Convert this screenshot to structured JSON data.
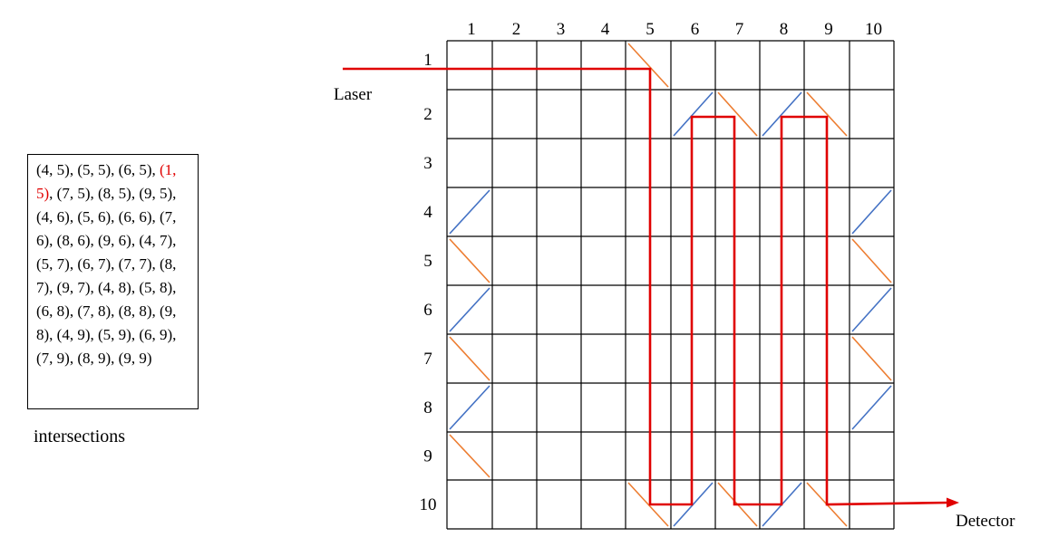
{
  "labels": {
    "laser": "Laser",
    "detector": "Detector",
    "intersections": "intersections"
  },
  "grid": {
    "rows": 10,
    "cols": 10,
    "column_labels": [
      "1",
      "2",
      "3",
      "4",
      "5",
      "6",
      "7",
      "8",
      "9",
      "10"
    ],
    "row_labels": [
      "1",
      "2",
      "3",
      "4",
      "5",
      "6",
      "7",
      "8",
      "9",
      "10"
    ]
  },
  "intersections": [
    {
      "text": "(4, 5)",
      "highlight": false
    },
    {
      "text": "(5, 5)",
      "highlight": false
    },
    {
      "text": "(6, 5)",
      "highlight": false
    },
    {
      "text": "(1, 5)",
      "highlight": true
    },
    {
      "text": "(7, 5)",
      "highlight": false
    },
    {
      "text": "(8, 5)",
      "highlight": false
    },
    {
      "text": "(9, 5)",
      "highlight": false
    },
    {
      "text": "(4, 6)",
      "highlight": false
    },
    {
      "text": "(5, 6)",
      "highlight": false
    },
    {
      "text": "(6, 6)",
      "highlight": false
    },
    {
      "text": "(7, 6)",
      "highlight": false
    },
    {
      "text": "(8, 6)",
      "highlight": false
    },
    {
      "text": "(9, 6)",
      "highlight": false
    },
    {
      "text": "(4, 7)",
      "highlight": false
    },
    {
      "text": "(5, 7)",
      "highlight": false
    },
    {
      "text": "(6, 7)",
      "highlight": false
    },
    {
      "text": "(7, 7)",
      "highlight": false
    },
    {
      "text": "(8, 7)",
      "highlight": false
    },
    {
      "text": "(9, 7)",
      "highlight": false
    },
    {
      "text": "(4, 8)",
      "highlight": false
    },
    {
      "text": "(5, 8)",
      "highlight": false
    },
    {
      "text": "(6, 8)",
      "highlight": false
    },
    {
      "text": "(7, 8)",
      "highlight": false
    },
    {
      "text": "(8, 8)",
      "highlight": false
    },
    {
      "text": "(9, 8)",
      "highlight": false
    },
    {
      "text": "(4, 9)",
      "highlight": false
    },
    {
      "text": "(5, 9)",
      "highlight": false
    },
    {
      "text": "(6, 9)",
      "highlight": false
    },
    {
      "text": "(7, 9)",
      "highlight": false
    },
    {
      "text": "(8, 9)",
      "highlight": false
    },
    {
      "text": "(9, 9)",
      "highlight": false
    }
  ],
  "mirrors": [
    {
      "row": 1,
      "col": 5,
      "type": "backslash",
      "color": "orange"
    },
    {
      "row": 2,
      "col": 6,
      "type": "slash",
      "color": "blue"
    },
    {
      "row": 2,
      "col": 7,
      "type": "backslash",
      "color": "orange"
    },
    {
      "row": 2,
      "col": 8,
      "type": "slash",
      "color": "blue"
    },
    {
      "row": 2,
      "col": 9,
      "type": "backslash",
      "color": "orange"
    },
    {
      "row": 4,
      "col": 1,
      "type": "slash",
      "color": "blue"
    },
    {
      "row": 5,
      "col": 1,
      "type": "backslash",
      "color": "orange"
    },
    {
      "row": 6,
      "col": 1,
      "type": "slash",
      "color": "blue"
    },
    {
      "row": 7,
      "col": 1,
      "type": "backslash",
      "color": "orange"
    },
    {
      "row": 8,
      "col": 1,
      "type": "slash",
      "color": "blue"
    },
    {
      "row": 9,
      "col": 1,
      "type": "backslash",
      "color": "orange"
    },
    {
      "row": 4,
      "col": 10,
      "type": "slash",
      "color": "blue"
    },
    {
      "row": 5,
      "col": 10,
      "type": "backslash",
      "color": "orange"
    },
    {
      "row": 6,
      "col": 10,
      "type": "slash",
      "color": "blue"
    },
    {
      "row": 7,
      "col": 10,
      "type": "backslash",
      "color": "orange"
    },
    {
      "row": 8,
      "col": 10,
      "type": "slash",
      "color": "blue"
    },
    {
      "row": 10,
      "col": 5,
      "type": "backslash",
      "color": "orange"
    },
    {
      "row": 10,
      "col": 6,
      "type": "slash",
      "color": "blue"
    },
    {
      "row": 10,
      "col": 7,
      "type": "backslash",
      "color": "orange"
    },
    {
      "row": 10,
      "col": 8,
      "type": "slash",
      "color": "blue"
    },
    {
      "row": 10,
      "col": 9,
      "type": "backslash",
      "color": "orange"
    }
  ],
  "colors": {
    "grid": "#000000",
    "beam": "#e00000",
    "mirror_orange": "#ed7d31",
    "mirror_blue": "#4472c4",
    "highlight_text": "#e00000"
  }
}
